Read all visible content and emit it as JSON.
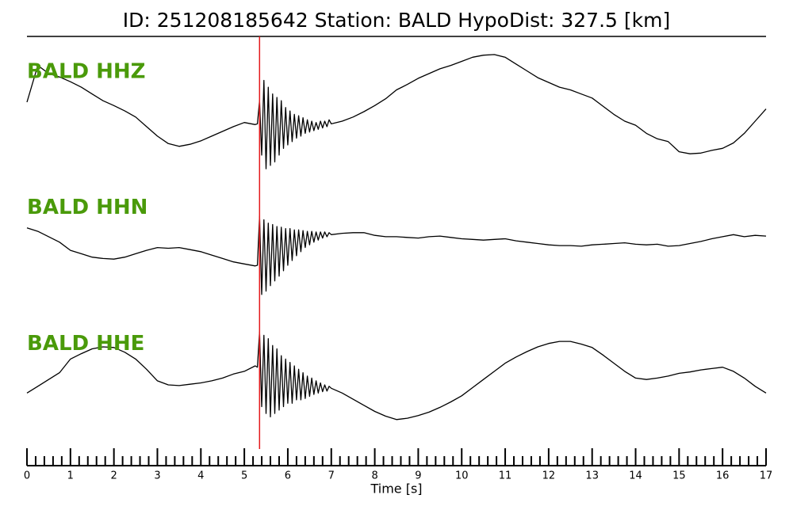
{
  "chart_data": {
    "type": "line",
    "title": "ID: 251208185642   Station: BALD   HypoDist:   327.5 [km]",
    "xlabel": "Time [s]",
    "xlim": [
      0,
      17
    ],
    "xticks": [
      0,
      1,
      2,
      3,
      4,
      5,
      6,
      7,
      8,
      9,
      10,
      11,
      12,
      13,
      14,
      15,
      16,
      17
    ],
    "xminorticks": [
      0.2,
      0.4,
      0.6,
      0.8,
      1.2,
      1.4,
      1.6,
      1.8,
      2.2,
      2.4,
      2.6,
      2.8,
      3.2,
      3.4,
      3.6,
      3.8,
      4.2,
      4.4,
      4.6,
      4.8,
      5.2,
      5.4,
      5.6,
      5.8,
      6.2,
      6.4,
      6.6,
      6.8,
      7.2,
      7.4,
      7.6,
      7.8,
      8.2,
      8.4,
      8.6,
      8.8,
      9.2,
      9.4,
      9.6,
      9.8,
      10.2,
      10.4,
      10.6,
      10.8,
      11.2,
      11.4,
      11.6,
      11.8,
      12.2,
      12.4,
      12.6,
      12.8,
      13.2,
      13.4,
      13.6,
      13.8,
      14.2,
      14.4,
      14.6,
      14.8,
      15.2,
      15.4,
      15.6,
      15.8,
      16.2,
      16.4,
      16.6,
      16.8
    ],
    "ylim": [
      -1,
      1
    ],
    "label_color": "#4a9a0a",
    "pick": {
      "x": 5.35,
      "color": "#e41a1c"
    },
    "x": [
      0,
      0.25,
      0.5,
      0.75,
      1,
      1.25,
      1.5,
      1.75,
      2,
      2.25,
      2.5,
      2.75,
      3,
      3.25,
      3.5,
      3.75,
      4,
      4.25,
      4.5,
      4.75,
      5,
      5.25,
      5.3,
      5.35,
      5.4,
      5.45,
      5.5,
      5.55,
      5.6,
      5.65,
      5.7,
      5.75,
      5.8,
      5.85,
      5.9,
      5.95,
      6.0,
      6.05,
      6.1,
      6.15,
      6.2,
      6.25,
      6.3,
      6.35,
      6.4,
      6.45,
      6.5,
      6.55,
      6.6,
      6.65,
      6.7,
      6.75,
      6.8,
      6.85,
      6.9,
      6.95,
      7.0,
      7.25,
      7.5,
      7.75,
      8,
      8.25,
      8.5,
      8.75,
      9,
      9.25,
      9.5,
      9.75,
      10,
      10.25,
      10.5,
      10.75,
      11,
      11.25,
      11.5,
      11.75,
      12,
      12.25,
      12.5,
      12.75,
      13,
      13.25,
      13.5,
      13.75,
      14,
      14.25,
      14.5,
      14.75,
      15,
      15.25,
      15.5,
      15.75,
      16,
      16.25,
      16.5,
      16.75,
      17
    ],
    "series": [
      {
        "name": "BALD HHZ",
        "color": "#000000",
        "values": [
          0.08,
          0.62,
          0.5,
          0.45,
          0.38,
          0.3,
          0.2,
          0.1,
          0.03,
          -0.05,
          -0.14,
          -0.28,
          -0.42,
          -0.53,
          -0.57,
          -0.54,
          -0.49,
          -0.42,
          -0.35,
          -0.28,
          -0.22,
          -0.25,
          -0.24,
          0.1,
          -0.7,
          0.4,
          -0.9,
          0.3,
          -0.85,
          0.2,
          -0.8,
          0.15,
          -0.7,
          0.1,
          -0.6,
          0.0,
          -0.55,
          -0.05,
          -0.5,
          -0.1,
          -0.45,
          -0.12,
          -0.42,
          -0.15,
          -0.38,
          -0.18,
          -0.36,
          -0.2,
          -0.34,
          -0.22,
          -0.32,
          -0.2,
          -0.3,
          -0.2,
          -0.28,
          -0.18,
          -0.24,
          -0.2,
          -0.14,
          -0.06,
          0.03,
          0.13,
          0.26,
          0.34,
          0.43,
          0.5,
          0.57,
          0.62,
          0.68,
          0.74,
          0.77,
          0.78,
          0.74,
          0.64,
          0.54,
          0.44,
          0.37,
          0.3,
          0.26,
          0.2,
          0.14,
          0.02,
          -0.1,
          -0.2,
          -0.26,
          -0.38,
          -0.46,
          -0.5,
          -0.65,
          -0.68,
          -0.67,
          -0.63,
          -0.6,
          -0.52,
          -0.38,
          -0.2,
          -0.02
        ]
      },
      {
        "name": "BALD HHN",
        "color": "#000000",
        "values": [
          0.23,
          0.18,
          0.1,
          0.02,
          -0.1,
          -0.15,
          -0.2,
          -0.22,
          -0.23,
          -0.2,
          -0.15,
          -0.1,
          -0.06,
          -0.07,
          -0.06,
          -0.09,
          -0.12,
          -0.17,
          -0.22,
          -0.27,
          -0.3,
          -0.33,
          -0.32,
          0.4,
          -0.75,
          0.35,
          -0.7,
          0.3,
          -0.62,
          0.28,
          -0.55,
          0.25,
          -0.48,
          0.24,
          -0.4,
          0.22,
          -0.32,
          0.22,
          -0.25,
          0.2,
          -0.18,
          0.2,
          -0.12,
          0.19,
          -0.06,
          0.18,
          -0.02,
          0.18,
          0.02,
          0.17,
          0.05,
          0.17,
          0.08,
          0.17,
          0.1,
          0.16,
          0.13,
          0.15,
          0.16,
          0.16,
          0.12,
          0.1,
          0.1,
          0.09,
          0.08,
          0.1,
          0.11,
          0.09,
          0.07,
          0.06,
          0.05,
          0.06,
          0.07,
          0.04,
          0.02,
          0.0,
          -0.02,
          -0.03,
          -0.03,
          -0.04,
          -0.02,
          -0.01,
          0.0,
          0.01,
          -0.01,
          -0.02,
          -0.01,
          -0.04,
          -0.03,
          0.0,
          0.03,
          0.07,
          0.1,
          0.13,
          0.1,
          0.12,
          0.11
        ]
      },
      {
        "name": "BALD HHE",
        "color": "#000000",
        "values": [
          -0.2,
          -0.1,
          0.0,
          0.1,
          0.3,
          0.38,
          0.45,
          0.48,
          0.47,
          0.4,
          0.3,
          0.15,
          -0.02,
          -0.08,
          -0.09,
          -0.07,
          -0.05,
          -0.02,
          0.02,
          0.08,
          0.12,
          0.2,
          0.18,
          0.7,
          -0.4,
          0.65,
          -0.5,
          0.6,
          -0.55,
          0.5,
          -0.5,
          0.45,
          -0.45,
          0.35,
          -0.4,
          0.3,
          -0.35,
          0.25,
          -0.35,
          0.2,
          -0.3,
          0.15,
          -0.3,
          0.1,
          -0.28,
          0.05,
          -0.25,
          0.02,
          -0.22,
          -0.02,
          -0.2,
          -0.05,
          -0.18,
          -0.08,
          -0.17,
          -0.1,
          -0.13,
          -0.2,
          -0.29,
          -0.38,
          -0.47,
          -0.54,
          -0.59,
          -0.57,
          -0.53,
          -0.48,
          -0.41,
          -0.33,
          -0.24,
          -0.12,
          0.0,
          0.12,
          0.24,
          0.33,
          0.41,
          0.48,
          0.53,
          0.56,
          0.56,
          0.52,
          0.47,
          0.36,
          0.24,
          0.12,
          0.02,
          0.0,
          0.02,
          0.05,
          0.09,
          0.11,
          0.14,
          0.16,
          0.18,
          0.12,
          0.02,
          -0.1,
          -0.2
        ]
      }
    ]
  }
}
